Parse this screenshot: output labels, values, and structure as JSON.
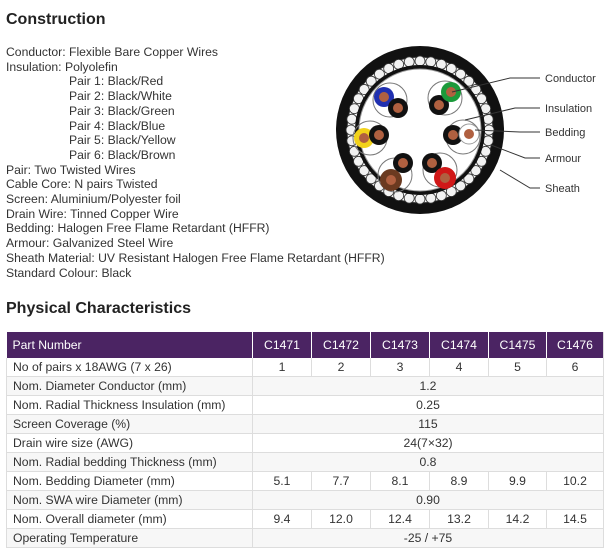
{
  "construction": {
    "title": "Construction",
    "lines": [
      {
        "text": "Conductor: Flexible Bare Copper Wires",
        "indent": false
      },
      {
        "text": "Insulation: Polyolefin",
        "indent": false
      },
      {
        "text": "Pair 1: Black/Red",
        "indent": true
      },
      {
        "text": "Pair 2: Black/White",
        "indent": true
      },
      {
        "text": "Pair 3: Black/Green",
        "indent": true
      },
      {
        "text": "Pair 4: Black/Blue",
        "indent": true
      },
      {
        "text": "Pair 5: Black/Yellow",
        "indent": true
      },
      {
        "text": "Pair 6: Black/Brown",
        "indent": true
      },
      {
        "text": "Pair: Two Twisted Wires",
        "indent": false
      },
      {
        "text": "Cable Core: N pairs Twisted",
        "indent": false
      },
      {
        "text": "Screen: Aluminium/Polyester foil",
        "indent": false
      },
      {
        "text": "Drain Wire: Tinned Copper Wire",
        "indent": false
      },
      {
        "text": "Bedding: Halogen Free Flame Retardant (HFFR)",
        "indent": false
      },
      {
        "text": "Armour: Galvanized Steel Wire",
        "indent": false
      },
      {
        "text": "Sheath Material: UV Resistant Halogen Free Flame Retardant (HFFR)",
        "indent": false
      },
      {
        "text": "Standard Colour: Black",
        "indent": false
      }
    ]
  },
  "diagram": {
    "labels": [
      "Conductor",
      "Insulation",
      "Bedding",
      "Armour",
      "Sheath"
    ]
  },
  "physical": {
    "title": "Physical Characteristics",
    "header_color": "#4b2463",
    "headers": [
      "Part Number",
      "C1471",
      "C1472",
      "C1473",
      "C1474",
      "C1475",
      "C1476"
    ],
    "rows": [
      {
        "label": "No of pairs x 18AWG (7 x 26)",
        "values": [
          "1",
          "2",
          "3",
          "4",
          "5",
          "6"
        ]
      },
      {
        "label": "Nom. Diameter Conductor (mm)",
        "values": [
          "1.2"
        ]
      },
      {
        "label": "Nom. Radial Thickness Insulation (mm)",
        "values": [
          "0.25"
        ]
      },
      {
        "label": "Screen Coverage (%)",
        "values": [
          "115"
        ]
      },
      {
        "label": "Drain wire size (AWG)",
        "values": [
          "24(7×32)"
        ]
      },
      {
        "label": "Nom. Radial bedding Thickness (mm)",
        "values": [
          "0.8"
        ]
      },
      {
        "label": "Nom. Bedding Diameter (mm)",
        "values": [
          "5.1",
          "7.7",
          "8.1",
          "8.9",
          "9.9",
          "10.2"
        ]
      },
      {
        "label": "Nom. SWA wire Diameter (mm)",
        "values": [
          "0.90"
        ]
      },
      {
        "label": "Nom. Overall diameter (mm)",
        "values": [
          "9.4",
          "12.0",
          "12.4",
          "13.2",
          "14.2",
          "14.5"
        ]
      },
      {
        "label": "Operating Temperature",
        "values": [
          "-25 / +75"
        ]
      }
    ]
  }
}
